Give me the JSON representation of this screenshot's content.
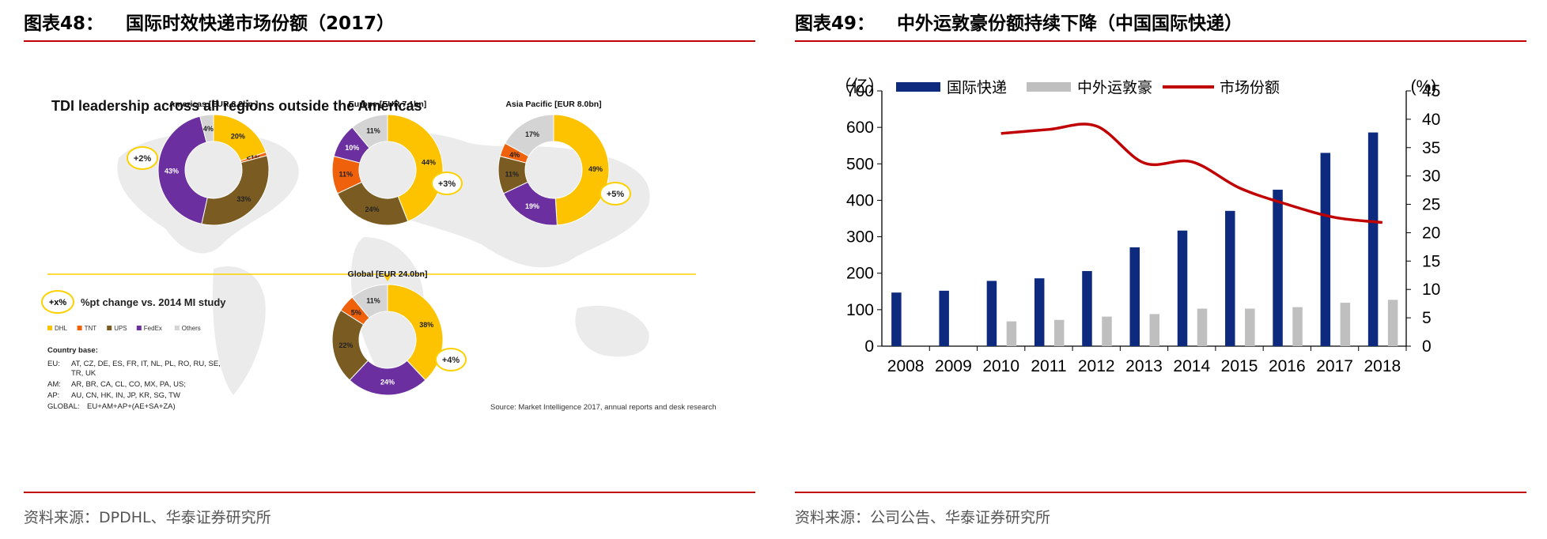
{
  "figure48": {
    "title_num": "图表48：",
    "title_text": "国际时效快递市场份额（2017）",
    "source": "资料来源：DPDHL、华泰证券研究所",
    "image": {
      "heading": "TDI leadership across all regions outside the Americas",
      "regions": [
        {
          "name": "Americas [EUR 8.2bn ]",
          "change": "+2%",
          "slices": [
            {
              "carrier": "DHL",
              "value": 20,
              "label": "20%"
            },
            {
              "carrier": "TNT",
              "value": 1,
              "label": "<1%"
            },
            {
              "carrier": "UPS",
              "value": 33,
              "label": "33%"
            },
            {
              "carrier": "FedEx",
              "value": 43,
              "label": "43%"
            },
            {
              "carrier": "Others",
              "value": 4,
              "label": "4%"
            }
          ]
        },
        {
          "name": "Europe [EUR 7.1bn]",
          "change": "+3%",
          "slices": [
            {
              "carrier": "DHL",
              "value": 44,
              "label": "44%"
            },
            {
              "carrier": "UPS",
              "value": 24,
              "label": "24%"
            },
            {
              "carrier": "TNT",
              "value": 11,
              "label": "11%"
            },
            {
              "carrier": "FedEx",
              "value": 10,
              "label": "10%"
            },
            {
              "carrier": "Others",
              "value": 11,
              "label": "11%"
            }
          ]
        },
        {
          "name": "Asia Pacific [EUR 8.0bn]",
          "change": "+5%",
          "slices": [
            {
              "carrier": "DHL",
              "value": 49,
              "label": "49%"
            },
            {
              "carrier": "FedEx",
              "value": 19,
              "label": "19%"
            },
            {
              "carrier": "UPS",
              "value": 11,
              "label": "11%"
            },
            {
              "carrier": "TNT",
              "value": 4,
              "label": "4%"
            },
            {
              "carrier": "Others",
              "value": 17,
              "label": "17%"
            }
          ]
        },
        {
          "name": "Global [EUR 24.0bn]",
          "change": "+4%",
          "slices": [
            {
              "carrier": "DHL",
              "value": 38,
              "label": "38%"
            },
            {
              "carrier": "FedEx",
              "value": 24,
              "label": "24%"
            },
            {
              "carrier": "UPS",
              "value": 22,
              "label": "22%"
            },
            {
              "carrier": "TNT",
              "value": 5,
              "label": "5%"
            },
            {
              "carrier": "Others",
              "value": 11,
              "label": "11%"
            }
          ]
        }
      ],
      "change_badge": "+x%",
      "change_note": "%pt change vs. 2014 MI study",
      "legend": [
        {
          "name": "DHL",
          "color": "#fdc200"
        },
        {
          "name": "TNT",
          "color": "#f0610c"
        },
        {
          "name": "UPS",
          "color": "#7a5c22"
        },
        {
          "name": "FedEx",
          "color": "#6b2fa0"
        },
        {
          "name": "Others",
          "color": "#d4d4d4"
        }
      ],
      "country_base_title": "Country base:",
      "country_base": [
        {
          "key": "EU:",
          "value": "AT, CZ, DE, ES, FR, IT, NL, PL, RO, RU, SE,",
          "value2": "TR, UK"
        },
        {
          "key": "AM:",
          "value": "AR, BR, CA, CL, CO, MX, PA, US;",
          "value2": ""
        },
        {
          "key": "AP:",
          "value": "AU, CN, HK, IN, JP, KR, SG, TW",
          "value2": ""
        },
        {
          "key": "GLOBAL:",
          "value": "EU+AM+AP+(AE+SA+ZA)",
          "value2": ""
        }
      ],
      "source_note": "Source: Market Intelligence 2017, annual reports and desk research"
    }
  },
  "figure49": {
    "title_num": "图表49：",
    "title_text": "中外运敦豪份额持续下降（中国国际快递）",
    "source": "资料来源：公司公告、华泰证券研究所",
    "chart_data": {
      "type": "bar",
      "categories": [
        "2008",
        "2009",
        "2010",
        "2011",
        "2012",
        "2013",
        "2014",
        "2015",
        "2016",
        "2017",
        "2018"
      ],
      "left_axis_unit": "（亿）",
      "right_axis_unit": "(%)",
      "ylim": [
        0,
        700
      ],
      "y_ticks": [
        0,
        100,
        200,
        300,
        400,
        500,
        600,
        700
      ],
      "y2lim": [
        0,
        45
      ],
      "y2_ticks": [
        0,
        5,
        10,
        15,
        20,
        25,
        30,
        35,
        40,
        45
      ],
      "series": [
        {
          "name": "国际快递",
          "kind": "bar",
          "axis": "left",
          "color": "#0d2a7f",
          "values": [
            147,
            152,
            179,
            186,
            206,
            271,
            317,
            371,
            429,
            530,
            586
          ]
        },
        {
          "name": "中外运敦豪",
          "kind": "bar",
          "axis": "left",
          "color": "#bfbfbf",
          "values": [
            null,
            null,
            68,
            72,
            81,
            88,
            103,
            103,
            107,
            119,
            127
          ]
        },
        {
          "name": "市场份额",
          "kind": "line",
          "axis": "right",
          "color": "#c00000",
          "values": [
            null,
            null,
            37.5,
            38.2,
            38.8,
            32.3,
            32.5,
            27.9,
            25.0,
            22.7,
            21.8
          ]
        }
      ]
    }
  }
}
